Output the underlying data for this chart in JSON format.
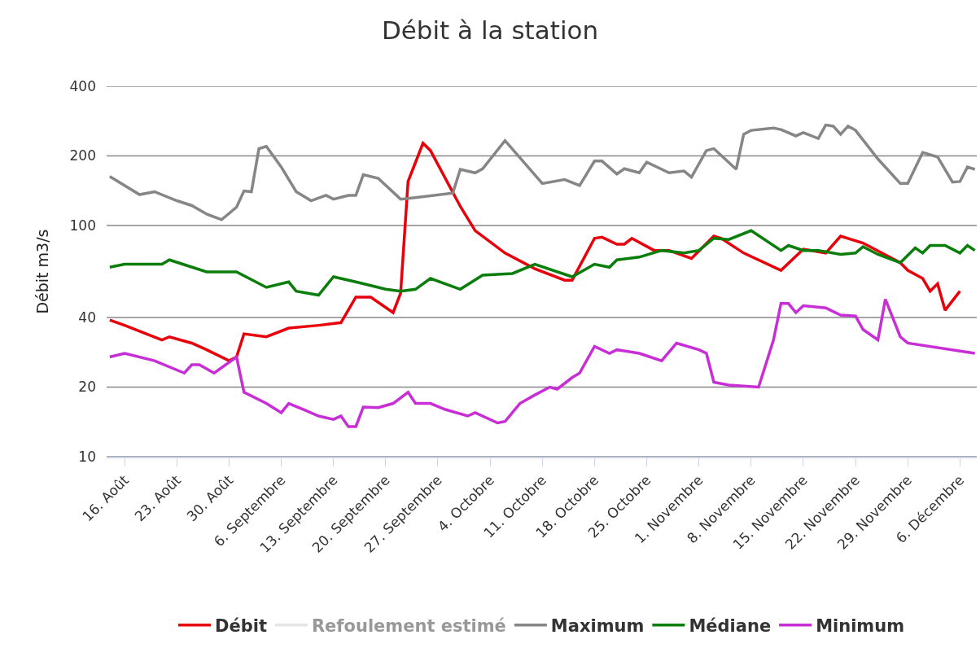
{
  "chart_data": {
    "type": "line",
    "title": "Débit à la station",
    "ylabel": "Débit m3/s",
    "log": "y",
    "grid": "y",
    "legend": "bottom",
    "line_style": "solid",
    "marker": "none",
    "xlim": [
      "--08-13T14:00",
      "--12-08T06:00"
    ],
    "xticks": [
      {
        "value": "--08-16",
        "label": "16. Août"
      },
      {
        "value": "--08-23",
        "label": "23. Août"
      },
      {
        "value": "--08-30",
        "label": "30. Août"
      },
      {
        "value": "--09-06",
        "label": "6. Septembre"
      },
      {
        "value": "--09-13",
        "label": "13. Septembre"
      },
      {
        "value": "--09-20",
        "label": "20. Septembre"
      },
      {
        "value": "--09-27",
        "label": "27. Septembre"
      },
      {
        "value": "--10-04",
        "label": "4. Octobre"
      },
      {
        "value": "--10-11",
        "label": "11. Octobre"
      },
      {
        "value": "--10-18",
        "label": "18. Octobre"
      },
      {
        "value": "--10-25",
        "label": "25. Octobre"
      },
      {
        "value": "--11-01",
        "label": "1. Novembre"
      },
      {
        "value": "--11-08",
        "label": "8. Novembre"
      },
      {
        "value": "--11-15",
        "label": "15. Novembre"
      },
      {
        "value": "--11-22",
        "label": "22. Novembre"
      },
      {
        "value": "--11-29",
        "label": "29. Novembre"
      },
      {
        "value": "--12-06",
        "label": "6. Décembre"
      }
    ],
    "ylim": [
      10,
      400
    ],
    "yticks": [
      10,
      20,
      40,
      100,
      200,
      400
    ],
    "series": [
      {
        "name": "Débit",
        "color": "#e8000b",
        "x": [
          "--08-14",
          "--08-16",
          "--08-21",
          "--08-22",
          "--08-25",
          "--08-27",
          "--08-30",
          "--08-31",
          "--09-01",
          "--09-04",
          "--09-07",
          "--09-11",
          "--09-14",
          "--09-16",
          "--09-18",
          "--09-21",
          "--09-22",
          "--09-23",
          "--09-25",
          "--09-26",
          "--09-30",
          "--10-02",
          "--10-06",
          "--10-10",
          "--10-14",
          "--10-15",
          "--10-18",
          "--10-19",
          "--10-21",
          "--10-22",
          "--10-23",
          "--10-26",
          "--10-28",
          "--10-31",
          "--11-03",
          "--11-04",
          "--11-07",
          "--11-12",
          "--11-15",
          "--11-18",
          "--11-20",
          "--11-23",
          "--11-28",
          "--11-29",
          "--12-01",
          "--12-02",
          "--12-03",
          "--12-04",
          "--12-06"
        ],
        "values": [
          39,
          37,
          32,
          33,
          31,
          29,
          26,
          27,
          34,
          33,
          36,
          37,
          38,
          49,
          49,
          42,
          51,
          155,
          227,
          211,
          121,
          95,
          76,
          65,
          58,
          58,
          88,
          89,
          83,
          83,
          88,
          78,
          78,
          72,
          90,
          88,
          76,
          64,
          79,
          76,
          90,
          84,
          69,
          64,
          59,
          52,
          56,
          43,
          52
        ]
      },
      {
        "name": "Refoulement estimé",
        "color": "#cccccc"
      },
      {
        "name": "Maximum",
        "color": "#868686",
        "x": [
          "--08-14",
          "--08-18",
          "--08-20",
          "--08-23",
          "--08-25",
          "--08-27",
          "--08-29",
          "--08-31",
          "--09-01",
          "--09-02",
          "--09-03",
          "--09-04",
          "--09-06",
          "--09-08",
          "--09-10",
          "--09-12",
          "--09-13",
          "--09-15",
          "--09-16",
          "--09-17",
          "--09-19",
          "--09-22",
          "--09-23",
          "--09-29",
          "--09-30",
          "--10-02",
          "--10-03",
          "--10-06",
          "--10-11",
          "--10-14",
          "--10-16",
          "--10-18",
          "--10-19",
          "--10-21",
          "--10-22",
          "--10-24",
          "--10-25",
          "--10-28",
          "--10-30",
          "--10-31",
          "--11-02",
          "--11-03",
          "--11-06",
          "--11-07",
          "--11-08",
          "--11-11",
          "--11-12",
          "--11-14",
          "--11-15",
          "--11-17",
          "--11-18",
          "--11-19",
          "--11-20",
          "--11-21",
          "--11-22",
          "--11-25",
          "--11-28",
          "--11-29",
          "--12-01",
          "--12-03",
          "--12-05",
          "--12-06",
          "--12-07",
          "--12-08"
        ],
        "values": [
          163,
          136,
          140,
          128,
          122,
          112,
          106,
          120,
          141,
          140,
          215,
          220,
          179,
          140,
          128,
          135,
          130,
          135,
          135,
          166,
          160,
          130,
          131,
          138,
          175,
          169,
          176,
          233,
          152,
          158,
          149,
          190,
          190,
          167,
          176,
          169,
          188,
          169,
          172,
          162,
          211,
          215,
          175,
          248,
          258,
          264,
          260,
          244,
          252,
          238,
          272,
          269,
          248,
          269,
          258,
          194,
          152,
          152,
          207,
          198,
          154,
          155,
          179,
          175
        ]
      },
      {
        "name": "Médiane",
        "color": "#0a7d0a",
        "x": [
          "--08-14",
          "--08-16",
          "--08-21",
          "--08-22",
          "--08-27",
          "--08-31",
          "--09-04",
          "--09-07",
          "--09-08",
          "--09-11",
          "--09-13",
          "--09-16",
          "--09-20",
          "--09-22",
          "--09-24",
          "--09-26",
          "--09-30",
          "--10-03",
          "--10-07",
          "--10-10",
          "--10-15",
          "--10-18",
          "--10-20",
          "--10-21",
          "--10-24",
          "--10-27",
          "--10-30",
          "--11-01",
          "--11-03",
          "--11-05",
          "--11-08",
          "--11-12",
          "--11-13",
          "--11-15",
          "--11-17",
          "--11-20",
          "--11-22",
          "--11-23",
          "--11-25",
          "--11-28",
          "--11-30",
          "--12-01",
          "--12-02",
          "--12-04",
          "--12-06",
          "--12-07",
          "--12-08"
        ],
        "values": [
          66,
          68,
          68,
          71,
          63,
          63,
          54,
          57,
          52,
          50,
          60,
          57,
          53,
          52,
          53,
          59,
          53,
          61,
          62,
          68,
          60,
          68,
          66,
          71,
          73,
          78,
          76,
          78,
          88,
          87,
          95,
          78,
          82,
          78,
          78,
          75,
          76,
          81,
          75,
          69,
          80,
          76,
          82,
          82,
          76,
          82,
          78
        ]
      },
      {
        "name": "Minimum",
        "color": "#c82ed6",
        "x": [
          "--08-14",
          "--08-16",
          "--08-20",
          "--08-24",
          "--08-25",
          "--08-26",
          "--08-28",
          "--08-31",
          "--09-01",
          "--09-04",
          "--09-06",
          "--09-07",
          "--09-09",
          "--09-11",
          "--09-13",
          "--09-14",
          "--09-15",
          "--09-16",
          "--09-17",
          "--09-19",
          "--09-21",
          "--09-23",
          "--09-24",
          "--09-26",
          "--09-28",
          "--10-01",
          "--10-02",
          "--10-05",
          "--10-06",
          "--10-08",
          "--10-10",
          "--10-12",
          "--10-13",
          "--10-15",
          "--10-16",
          "--10-18",
          "--10-20",
          "--10-21",
          "--10-24",
          "--10-27",
          "--10-29",
          "--11-01",
          "--11-02",
          "--11-03",
          "--11-05",
          "--11-09",
          "--11-11",
          "--11-12",
          "--11-13",
          "--11-14",
          "--11-15",
          "--11-18",
          "--11-20",
          "--11-22",
          "--11-23",
          "--11-25",
          "--11-26",
          "--11-28",
          "--11-29",
          "--12-08"
        ],
        "values": [
          27,
          28,
          26,
          23,
          25,
          25,
          23,
          27,
          19,
          17,
          15.5,
          17,
          16,
          15,
          14.5,
          15,
          13.5,
          13.5,
          16.4,
          16.3,
          17,
          19,
          17,
          17,
          16,
          15,
          15.5,
          14,
          14.2,
          17,
          18.5,
          20,
          19.6,
          22,
          23,
          30,
          28,
          29,
          28,
          26,
          31,
          29,
          28,
          21,
          20.4,
          20,
          32,
          46,
          46,
          42,
          45,
          44,
          41,
          40.6,
          35.5,
          32,
          48,
          33,
          31,
          28
        ]
      }
    ]
  }
}
